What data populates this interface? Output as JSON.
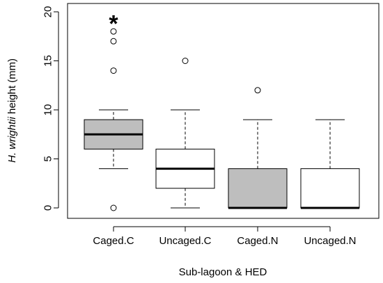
{
  "chart_data": {
    "type": "boxplot",
    "xlabel": "Sub-lagoon & HED",
    "ylabel": {
      "italic": "H. wrightii",
      "rest": " height (mm)"
    },
    "ylim": [
      0,
      20
    ],
    "yticks": [
      0,
      5,
      10,
      15,
      20
    ],
    "grid": false,
    "categories": [
      "Caged.C",
      "Uncaged.C",
      "Caged.N",
      "Uncaged.N"
    ],
    "boxes": [
      {
        "name": "Caged.C",
        "min": 4,
        "q1": 6,
        "median": 7.5,
        "q3": 9,
        "max": 10,
        "outliers": [
          0,
          14,
          17,
          18
        ],
        "fill": "#bebebe"
      },
      {
        "name": "Uncaged.C",
        "min": 0,
        "q1": 2,
        "median": 4,
        "q3": 6,
        "max": 10,
        "outliers": [
          15
        ],
        "fill": "#ffffff"
      },
      {
        "name": "Caged.N",
        "min": 0,
        "q1": 0,
        "median": 0,
        "q3": 4,
        "max": 9,
        "outliers": [
          12
        ],
        "fill": "#bebebe"
      },
      {
        "name": "Uncaged.N",
        "min": 0,
        "q1": 0,
        "median": 0,
        "q3": 4,
        "max": 9,
        "outliers": [],
        "fill": "#ffffff"
      }
    ],
    "annotations": [
      {
        "text": "*",
        "category": "Caged.C",
        "y": 19.2
      }
    ]
  }
}
